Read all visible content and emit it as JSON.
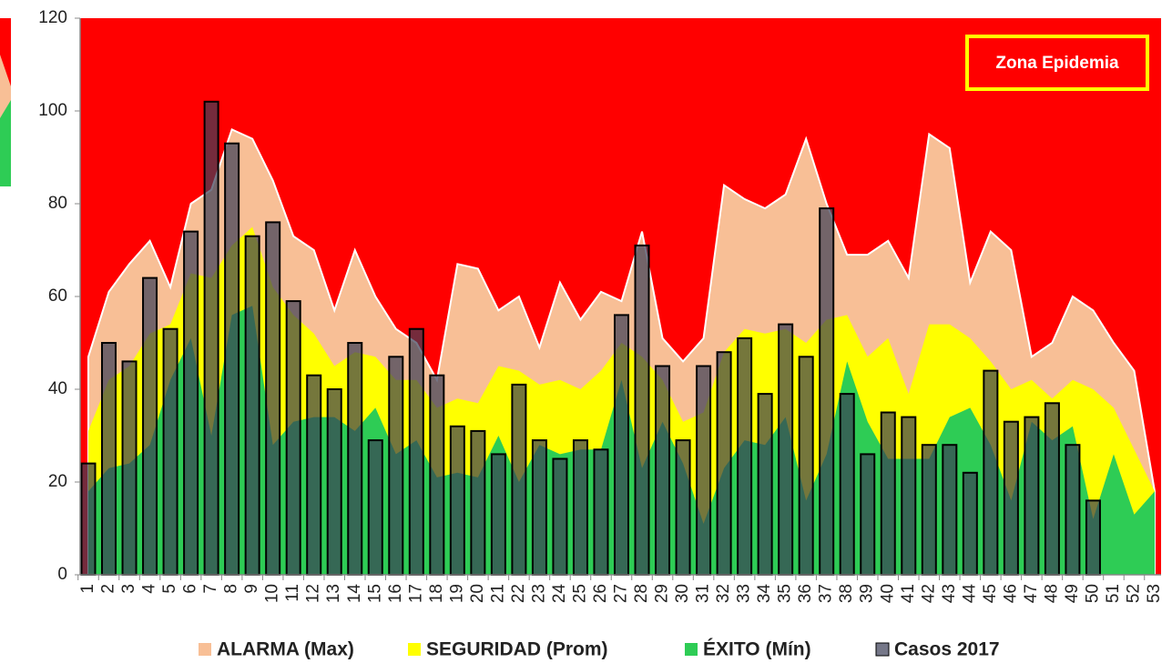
{
  "chart_data": {
    "type": "endemic_channel",
    "annotation": "Zona Epidemia",
    "categories": [
      "1",
      "2",
      "3",
      "4",
      "5",
      "6",
      "7",
      "8",
      "9",
      "10",
      "11",
      "12",
      "13",
      "14",
      "15",
      "16",
      "17",
      "18",
      "19",
      "20",
      "21",
      "22",
      "23",
      "24",
      "25",
      "26",
      "27",
      "28",
      "29",
      "30",
      "31",
      "32",
      "33",
      "34",
      "35",
      "36",
      "37",
      "38",
      "39",
      "40",
      "41",
      "42",
      "43",
      "44",
      "45",
      "46",
      "47",
      "48",
      "49",
      "50",
      "51",
      "52",
      "53"
    ],
    "background_color": "#ff0000",
    "series": [
      {
        "name": "ALARMA (Max)",
        "kind": "area",
        "color": "#f8bf96",
        "values": [
          47,
          61,
          67,
          72,
          62,
          80,
          83,
          96,
          94,
          85,
          73,
          70,
          57,
          70,
          60,
          53,
          50,
          42,
          67,
          66,
          57,
          60,
          49,
          63,
          55,
          61,
          59,
          74,
          51,
          46,
          51,
          84,
          81,
          79,
          82,
          94,
          80,
          69,
          69,
          72,
          64,
          95,
          92,
          63,
          74,
          70,
          47,
          50,
          60,
          57,
          50,
          44,
          18
        ]
      },
      {
        "name": "SEGURIDAD (Prom)",
        "kind": "area",
        "color": "#ffff00",
        "values": [
          31,
          42,
          45,
          52,
          54,
          65,
          64,
          71,
          75,
          62,
          56,
          52,
          45,
          48,
          47,
          42,
          42,
          36,
          38,
          37,
          45,
          44,
          41,
          42,
          40,
          44,
          50,
          47,
          42,
          33,
          35,
          48,
          53,
          52,
          53,
          50,
          55,
          56,
          47,
          51,
          39,
          54,
          54,
          51,
          46,
          40,
          42,
          38,
          42,
          40,
          36,
          27,
          18
        ]
      },
      {
        "name": "ÉXITO (Mín)",
        "kind": "area",
        "color": "#2ecc55",
        "values": [
          18,
          23,
          24,
          28,
          42,
          51,
          30,
          56,
          58,
          28,
          33,
          34,
          34,
          31,
          36,
          26,
          29,
          21,
          22,
          21,
          30,
          20,
          28,
          26,
          27,
          27,
          42,
          23,
          33,
          24,
          11,
          23,
          29,
          28,
          34,
          16,
          26,
          46,
          33,
          25,
          25,
          25,
          34,
          36,
          28,
          16,
          33,
          29,
          32,
          12,
          26,
          13,
          18
        ]
      },
      {
        "name": "Casos 2017",
        "kind": "bar",
        "color": "#3a3d55",
        "values": [
          24,
          50,
          46,
          64,
          53,
          74,
          102,
          93,
          73,
          76,
          59,
          43,
          40,
          50,
          29,
          47,
          53,
          43,
          32,
          31,
          26,
          41,
          29,
          25,
          29,
          27,
          56,
          71,
          45,
          29,
          45,
          48,
          51,
          39,
          54,
          47,
          79,
          39,
          26,
          35,
          34,
          28,
          28,
          22,
          44,
          33,
          34,
          37,
          28,
          16,
          null,
          null,
          null
        ]
      }
    ],
    "ylim": [
      0,
      120
    ],
    "yticks": [
      0,
      20,
      40,
      60,
      80,
      100,
      120
    ]
  }
}
